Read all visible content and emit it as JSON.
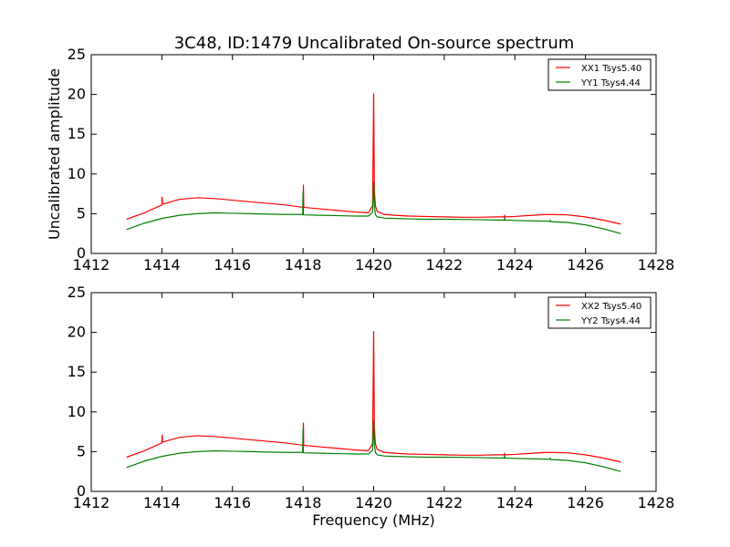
{
  "chart_data": {
    "type": "line",
    "title": "3C48, ID:1479 Uncalibrated On-source spectrum",
    "xlabel": "Frequency (MHz)",
    "ylabel": "Uncalibrated amplitude",
    "colors": {
      "XX": "#ff0000",
      "YY": "#008000"
    },
    "panels": [
      {
        "xlim": [
          1412,
          1428
        ],
        "ylim": [
          0,
          25
        ],
        "xticks": [
          "1412",
          "1414",
          "1416",
          "1418",
          "1420",
          "1422",
          "1424",
          "1426",
          "1428"
        ],
        "yticks": [
          "0",
          "5",
          "10",
          "15",
          "20",
          "25"
        ],
        "ylabel": "Uncalibrated amplitude",
        "xlabel": "",
        "legend_position": "top-right",
        "series": [
          {
            "name": "XX1 Tsys5.40",
            "color": "#ff0000",
            "x": [
              1413.0,
              1413.5,
              1414.0,
              1414.01,
              1414.02,
              1414.5,
              1415.0,
              1415.5,
              1416.0,
              1416.5,
              1417.0,
              1417.5,
              1418.0,
              1418.01,
              1418.02,
              1418.5,
              1419.0,
              1419.5,
              1419.85,
              1419.97,
              1420.0,
              1420.02,
              1420.05,
              1420.1,
              1420.3,
              1420.6,
              1421.0,
              1421.5,
              1422.0,
              1422.5,
              1423.0,
              1423.5,
              1423.7,
              1423.71,
              1423.72,
              1424.0,
              1424.5,
              1424.9,
              1425.0,
              1425.5,
              1426.0,
              1426.5,
              1427.0
            ],
            "y": [
              4.3,
              5.1,
              6.1,
              7.1,
              6.2,
              6.8,
              7.0,
              6.9,
              6.7,
              6.5,
              6.3,
              6.1,
              5.8,
              8.6,
              5.8,
              5.6,
              5.4,
              5.2,
              5.1,
              6.0,
              20.1,
              8.0,
              6.0,
              5.3,
              4.9,
              4.8,
              4.7,
              4.65,
              4.6,
              4.55,
              4.55,
              4.6,
              4.6,
              4.8,
              4.6,
              4.65,
              4.8,
              4.9,
              4.9,
              4.85,
              4.6,
              4.2,
              3.7
            ]
          },
          {
            "name": "YY1 Tsys4.44",
            "color": "#008000",
            "x": [
              1413.0,
              1413.5,
              1414.0,
              1414.5,
              1415.0,
              1415.5,
              1416.0,
              1416.5,
              1417.0,
              1417.5,
              1417.99,
              1418.0,
              1418.01,
              1418.02,
              1418.5,
              1419.0,
              1419.5,
              1419.85,
              1419.97,
              1420.0,
              1420.02,
              1420.05,
              1420.1,
              1420.3,
              1420.6,
              1421.0,
              1421.5,
              1422.0,
              1422.5,
              1423.0,
              1423.5,
              1423.7,
              1423.71,
              1423.72,
              1424.0,
              1424.5,
              1424.99,
              1425.0,
              1425.01,
              1425.5,
              1426.0,
              1426.5,
              1427.0
            ],
            "y": [
              3.0,
              3.8,
              4.4,
              4.8,
              5.0,
              5.1,
              5.05,
              5.0,
              4.95,
              4.9,
              4.9,
              7.8,
              4.85,
              4.85,
              4.8,
              4.75,
              4.7,
              4.7,
              5.2,
              9.0,
              6.0,
              4.9,
              4.6,
              4.45,
              4.4,
              4.35,
              4.3,
              4.3,
              4.28,
              4.25,
              4.2,
              4.2,
              4.5,
              4.2,
              4.15,
              4.1,
              4.05,
              4.2,
              4.0,
              3.9,
              3.6,
              3.1,
              2.5
            ]
          }
        ]
      },
      {
        "xlim": [
          1412,
          1428
        ],
        "ylim": [
          0,
          25
        ],
        "xticks": [
          "1412",
          "1414",
          "1416",
          "1418",
          "1420",
          "1422",
          "1424",
          "1426",
          "1428"
        ],
        "yticks": [
          "0",
          "5",
          "10",
          "15",
          "20",
          "25"
        ],
        "ylabel": "",
        "xlabel": "Frequency (MHz)",
        "legend_position": "top-right",
        "series": [
          {
            "name": "XX2 Tsys5.40",
            "color": "#ff0000",
            "x": [
              1413.0,
              1413.5,
              1414.0,
              1414.01,
              1414.02,
              1414.5,
              1415.0,
              1415.5,
              1416.0,
              1416.5,
              1417.0,
              1417.5,
              1418.0,
              1418.01,
              1418.02,
              1418.5,
              1419.0,
              1419.5,
              1419.85,
              1419.97,
              1420.0,
              1420.02,
              1420.05,
              1420.1,
              1420.3,
              1420.6,
              1421.0,
              1421.5,
              1422.0,
              1422.5,
              1423.0,
              1423.5,
              1423.7,
              1423.71,
              1423.72,
              1424.0,
              1424.5,
              1424.9,
              1425.0,
              1425.5,
              1426.0,
              1426.5,
              1427.0
            ],
            "y": [
              4.3,
              5.1,
              6.1,
              7.1,
              6.2,
              6.8,
              7.0,
              6.9,
              6.7,
              6.5,
              6.3,
              6.1,
              5.8,
              8.6,
              5.8,
              5.6,
              5.4,
              5.2,
              5.1,
              6.0,
              20.1,
              8.0,
              6.0,
              5.3,
              4.9,
              4.8,
              4.7,
              4.65,
              4.6,
              4.55,
              4.55,
              4.6,
              4.6,
              4.8,
              4.6,
              4.65,
              4.8,
              4.9,
              4.9,
              4.85,
              4.6,
              4.2,
              3.7
            ]
          },
          {
            "name": "YY2 Tsys4.44",
            "color": "#008000",
            "x": [
              1413.0,
              1413.5,
              1414.0,
              1414.5,
              1415.0,
              1415.5,
              1416.0,
              1416.5,
              1417.0,
              1417.5,
              1417.99,
              1418.0,
              1418.01,
              1418.02,
              1418.5,
              1419.0,
              1419.5,
              1419.85,
              1419.97,
              1420.0,
              1420.02,
              1420.05,
              1420.1,
              1420.3,
              1420.6,
              1421.0,
              1421.5,
              1422.0,
              1422.5,
              1423.0,
              1423.5,
              1423.7,
              1423.71,
              1423.72,
              1424.0,
              1424.5,
              1424.99,
              1425.0,
              1425.01,
              1425.5,
              1426.0,
              1426.5,
              1427.0
            ],
            "y": [
              3.0,
              3.8,
              4.4,
              4.8,
              5.0,
              5.1,
              5.05,
              5.0,
              4.95,
              4.9,
              4.9,
              7.8,
              4.85,
              4.85,
              4.8,
              4.75,
              4.7,
              4.7,
              5.2,
              9.0,
              6.0,
              4.9,
              4.6,
              4.45,
              4.4,
              4.35,
              4.3,
              4.3,
              4.28,
              4.25,
              4.2,
              4.2,
              4.5,
              4.2,
              4.15,
              4.1,
              4.05,
              4.2,
              4.0,
              3.9,
              3.6,
              3.1,
              2.5
            ]
          }
        ]
      }
    ]
  }
}
